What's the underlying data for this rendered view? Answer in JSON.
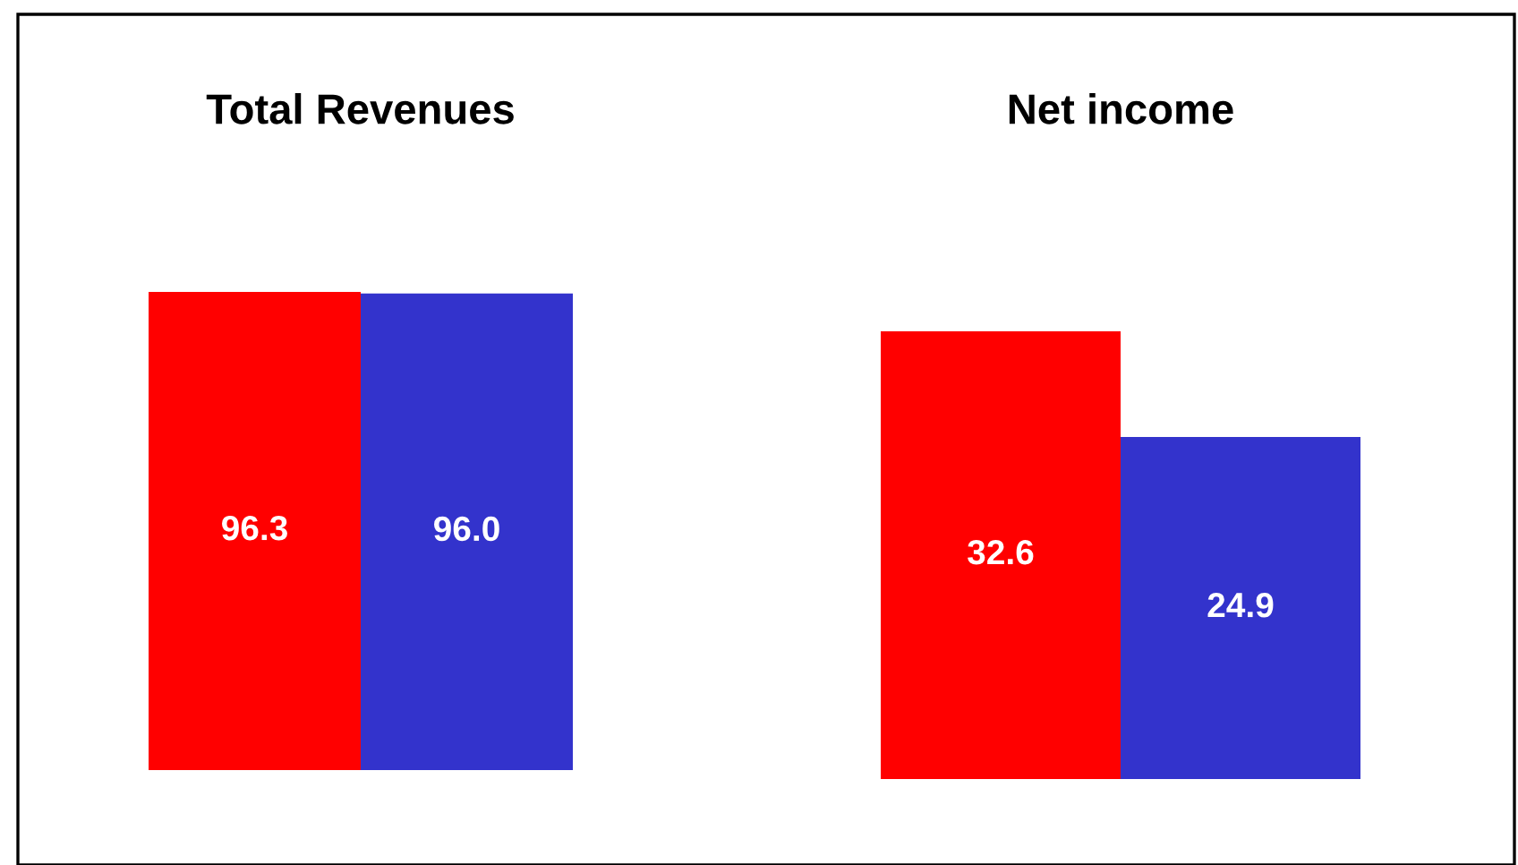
{
  "chart_data": [
    {
      "type": "bar",
      "title": "Total Revenues",
      "categories": [
        null,
        null
      ],
      "values": [
        96.3,
        96.0
      ],
      "value_labels": [
        "96.3",
        "96.0"
      ],
      "colors": [
        "#ff0000",
        "#3333cc"
      ]
    },
    {
      "type": "bar",
      "title": "Net income",
      "categories": [
        null,
        null
      ],
      "values": [
        32.6,
        24.9
      ],
      "colors": [
        "#ff0000",
        "#3333cc"
      ],
      "data_labels": true
    }
  ]
}
